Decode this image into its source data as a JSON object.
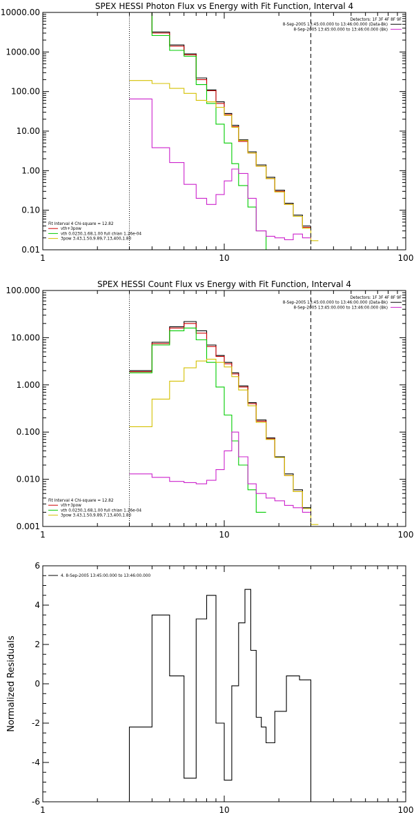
{
  "chart_data": [
    {
      "type": "line",
      "title": "SPEX HESSI Photon Flux vs Energy with Fit Function, Interval 4",
      "xscale": "log",
      "yscale": "log",
      "xlim": [
        1,
        100
      ],
      "ylim": [
        0.01,
        10000
      ],
      "x_ticks": [
        1,
        10,
        100
      ],
      "x_tick_labels": [
        "1",
        "10",
        "100"
      ],
      "y_ticks": [
        0.01,
        0.1,
        1,
        10,
        100,
        1000,
        10000
      ],
      "y_tick_labels": [
        "0.01",
        "0.10",
        "1.00",
        "10.00",
        "100.00",
        "1000.00",
        "10000.00"
      ],
      "vlines": [
        {
          "x": 3.0,
          "style": "dotted"
        },
        {
          "x": 30.0,
          "style": "dashed"
        }
      ],
      "legend_topright": {
        "lines": [
          {
            "text": "Detectors: 1F 3F 4F 8F 9F",
            "color": ""
          },
          {
            "text": "8-Sep-2005 13:45:00.000 to 13:46:00.000 (Data-Bk)",
            "color": "#000000"
          },
          {
            "text": "8-Sep-2005 13:45:00.000 to 13:46:00.000 (Bk)",
            "color": "#cc22cc"
          }
        ]
      },
      "legend_bottomleft": {
        "lines": [
          {
            "text": "Fit Interval 4   Chi-square = 12.82",
            "color": ""
          },
          {
            "text": "vth+3pow",
            "color": "#cc0000"
          },
          {
            "text": "vth 0.0230,1.68,1.00  full chian 1.26e-04",
            "color": "#00cc00"
          },
          {
            "text": "3pow 3.43,1.50,9.89,7.13,400,1.80",
            "color": "#d4c000"
          }
        ]
      },
      "series": [
        {
          "color": "#000000",
          "edges": [
            3.0,
            4.0,
            5.0,
            6.0,
            7.0,
            8.0,
            9.0,
            10.0,
            11.0,
            12.0,
            13.5,
            15.0,
            17.0,
            19.0,
            21.5,
            24.0,
            27.0,
            30.0
          ],
          "values": [
            10000,
            3200,
            1500,
            900,
            220,
            110,
            55,
            28,
            14,
            6.0,
            3.0,
            1.4,
            0.68,
            0.32,
            0.15,
            0.075,
            0.04
          ]
        },
        {
          "color": "#cc0000",
          "edges": [
            3.0,
            4.0,
            5.0,
            6.0,
            7.0,
            8.0,
            9.0,
            10.0,
            11.0,
            12.0,
            13.5,
            15.0,
            17.0,
            19.0,
            21.5,
            24.0,
            27.0,
            30.0
          ],
          "values": [
            10000,
            3000,
            1400,
            850,
            200,
            105,
            50,
            26,
            13,
            5.5,
            2.8,
            1.3,
            0.63,
            0.3,
            0.14,
            0.07,
            0.037
          ]
        },
        {
          "color": "#00cc00",
          "edges": [
            3.0,
            4.0,
            5.0,
            6.0,
            7.0,
            8.0,
            9.0,
            10.0,
            11.0,
            12.0,
            13.5,
            15.0,
            17.0,
            19.0
          ],
          "values": [
            10000,
            2600,
            1100,
            780,
            150,
            50,
            15,
            5,
            1.5,
            0.42,
            0.12,
            0.03,
            0.008
          ]
        },
        {
          "color": "#d4c000",
          "edges": [
            3.0,
            4.0,
            5.0,
            6.0,
            7.0,
            8.0,
            9.0,
            10.0,
            11.0,
            12.0,
            13.5,
            15.0,
            17.0,
            19.0,
            21.5,
            24.0,
            27.0,
            30.0,
            33.0
          ],
          "values": [
            190,
            160,
            120,
            90,
            60,
            55,
            40,
            25,
            12.5,
            5.8,
            2.8,
            1.3,
            0.63,
            0.29,
            0.14,
            0.07,
            0.035,
            0.017
          ]
        },
        {
          "color": "#cc22cc",
          "edges": [
            3.0,
            4.0,
            5.0,
            6.0,
            7.0,
            8.0,
            9.0,
            10.0,
            11.0,
            12.0,
            13.5,
            15.0,
            17.0,
            19.0,
            21.5,
            24.0,
            27.0,
            30.0
          ],
          "values": [
            65,
            3.8,
            1.6,
            0.45,
            0.2,
            0.14,
            0.25,
            0.55,
            1.1,
            0.85,
            0.2,
            0.03,
            0.022,
            0.02,
            0.018,
            0.025,
            0.02
          ]
        }
      ]
    },
    {
      "type": "line",
      "title": "SPEX HESSI Count Flux vs Energy with Fit Function, Interval 4",
      "xscale": "log",
      "yscale": "log",
      "xlim": [
        1,
        100
      ],
      "ylim": [
        0.001,
        100
      ],
      "x_ticks": [
        1,
        10,
        100
      ],
      "x_tick_labels": [
        "1",
        "10",
        "100"
      ],
      "y_ticks": [
        0.001,
        0.01,
        0.1,
        1,
        10,
        100
      ],
      "y_tick_labels": [
        "0.001",
        "0.010",
        "0.100",
        "1.000",
        "10.000",
        "100.000"
      ],
      "vlines": [
        {
          "x": 3.0,
          "style": "dotted"
        },
        {
          "x": 30.0,
          "style": "dashed"
        }
      ],
      "legend_topright": {
        "lines": [
          {
            "text": "Detectors: 1F 3F 4F 8F 9F",
            "color": ""
          },
          {
            "text": "8-Sep-2005 13:45:00.000 to 13:46:00.000 (Data-Bk)",
            "color": "#000000"
          },
          {
            "text": "8-Sep-2005 13:45:00.000 to 13:46:00.000 (Bk)",
            "color": "#cc22cc"
          }
        ]
      },
      "legend_bottomleft": {
        "lines": [
          {
            "text": "Fit Interval 4   Chi-square = 12.82",
            "color": ""
          },
          {
            "text": "vth+3pow",
            "color": "#cc0000"
          },
          {
            "text": "vth 0.0230,1.68,1.00  full chian 1.26e-04",
            "color": "#00cc00"
          },
          {
            "text": "3pow 3.43,1.50,9.89,7.13,400,1.80",
            "color": "#d4c000"
          }
        ]
      },
      "series": [
        {
          "color": "#000000",
          "edges": [
            3.0,
            4.0,
            5.0,
            6.0,
            7.0,
            8.0,
            9.0,
            10.0,
            11.0,
            12.0,
            13.5,
            15.0,
            17.0,
            19.0,
            21.5,
            24.0,
            27.0,
            30.0
          ],
          "values": [
            2.0,
            8.0,
            17,
            22,
            14,
            7.0,
            4.2,
            3.0,
            1.8,
            0.95,
            0.42,
            0.18,
            0.075,
            0.03,
            0.013,
            0.006,
            0.0025
          ]
        },
        {
          "color": "#cc0000",
          "edges": [
            3.0,
            4.0,
            5.0,
            6.0,
            7.0,
            8.0,
            9.0,
            10.0,
            11.0,
            12.0,
            13.5,
            15.0,
            17.0,
            19.0,
            21.5,
            24.0,
            27.0,
            30.0
          ],
          "values": [
            1.9,
            7.5,
            16,
            20,
            12.5,
            6.5,
            4.0,
            2.8,
            1.7,
            0.9,
            0.4,
            0.17,
            0.072,
            0.029,
            0.012,
            0.0055,
            0.0024
          ]
        },
        {
          "color": "#00cc00",
          "edges": [
            3.0,
            4.0,
            5.0,
            6.0,
            7.0,
            8.0,
            9.0,
            10.0,
            11.0,
            12.0,
            13.5,
            15.0,
            17.0
          ],
          "values": [
            1.8,
            7.0,
            14,
            16,
            9.0,
            3.0,
            0.9,
            0.23,
            0.065,
            0.02,
            0.006,
            0.002
          ]
        },
        {
          "color": "#d4c000",
          "edges": [
            3.0,
            4.0,
            5.0,
            6.0,
            7.0,
            8.0,
            9.0,
            10.0,
            11.0,
            12.0,
            13.5,
            15.0,
            17.0,
            19.0,
            21.5,
            24.0,
            27.0,
            30.0,
            33.0
          ],
          "values": [
            0.13,
            0.5,
            1.2,
            2.3,
            3.2,
            3.5,
            3.0,
            2.4,
            1.5,
            0.78,
            0.36,
            0.16,
            0.07,
            0.029,
            0.012,
            0.0055,
            0.0024,
            0.0011
          ]
        },
        {
          "color": "#cc22cc",
          "edges": [
            3.0,
            4.0,
            5.0,
            6.0,
            7.0,
            8.0,
            9.0,
            10.0,
            11.0,
            12.0,
            13.5,
            15.0,
            17.0,
            19.0,
            21.5,
            24.0,
            27.0,
            30.0
          ],
          "values": [
            0.013,
            0.011,
            0.009,
            0.0085,
            0.008,
            0.0095,
            0.016,
            0.04,
            0.1,
            0.03,
            0.008,
            0.005,
            0.004,
            0.0035,
            0.0028,
            0.0025,
            0.002
          ]
        }
      ]
    },
    {
      "type": "line",
      "title": "",
      "xscale": "log",
      "yscale": "linear",
      "xlim": [
        1,
        100
      ],
      "ylim": [
        -6,
        6
      ],
      "ylabel": "Normalized Residuals",
      "x_ticks": [
        1,
        10,
        100
      ],
      "x_tick_labels": [
        "1",
        "10",
        "100"
      ],
      "y_ticks": [
        -6,
        -4,
        -2,
        0,
        2,
        4,
        6
      ],
      "y_tick_labels": [
        "-6",
        "-4",
        "-2",
        "0",
        "2",
        "4",
        "6"
      ],
      "legend_topleft": {
        "lines": [
          {
            "text": "4.  8-Sep-2005 13:45:00.000 to 13:46:00.000",
            "color": "#000000"
          }
        ]
      },
      "series": [
        {
          "color": "#000000",
          "edges": [
            3.0,
            3.5,
            4.0,
            4.5,
            5.0,
            5.5,
            6.0,
            6.5,
            7.0,
            7.5,
            8.0,
            8.5,
            9.0,
            9.5,
            10.0,
            10.5,
            11.0,
            12.0,
            13.0,
            14.0,
            15.0,
            16.0,
            17.0,
            18.0,
            19.0,
            20.0,
            22.0,
            24.0,
            26.0,
            28.0,
            30.0
          ],
          "values": [
            -2.2,
            -2.2,
            3.5,
            3.5,
            0.4,
            0.4,
            -4.8,
            -4.8,
            3.3,
            3.3,
            4.5,
            4.5,
            -2.0,
            -2.0,
            -4.9,
            -4.9,
            -0.1,
            3.1,
            4.8,
            1.7,
            -1.7,
            -2.2,
            -3.0,
            -3.0,
            -1.4,
            -1.4,
            0.4,
            0.4,
            0.2,
            0.2
          ],
          "drop_to_bottom": true
        }
      ]
    }
  ]
}
